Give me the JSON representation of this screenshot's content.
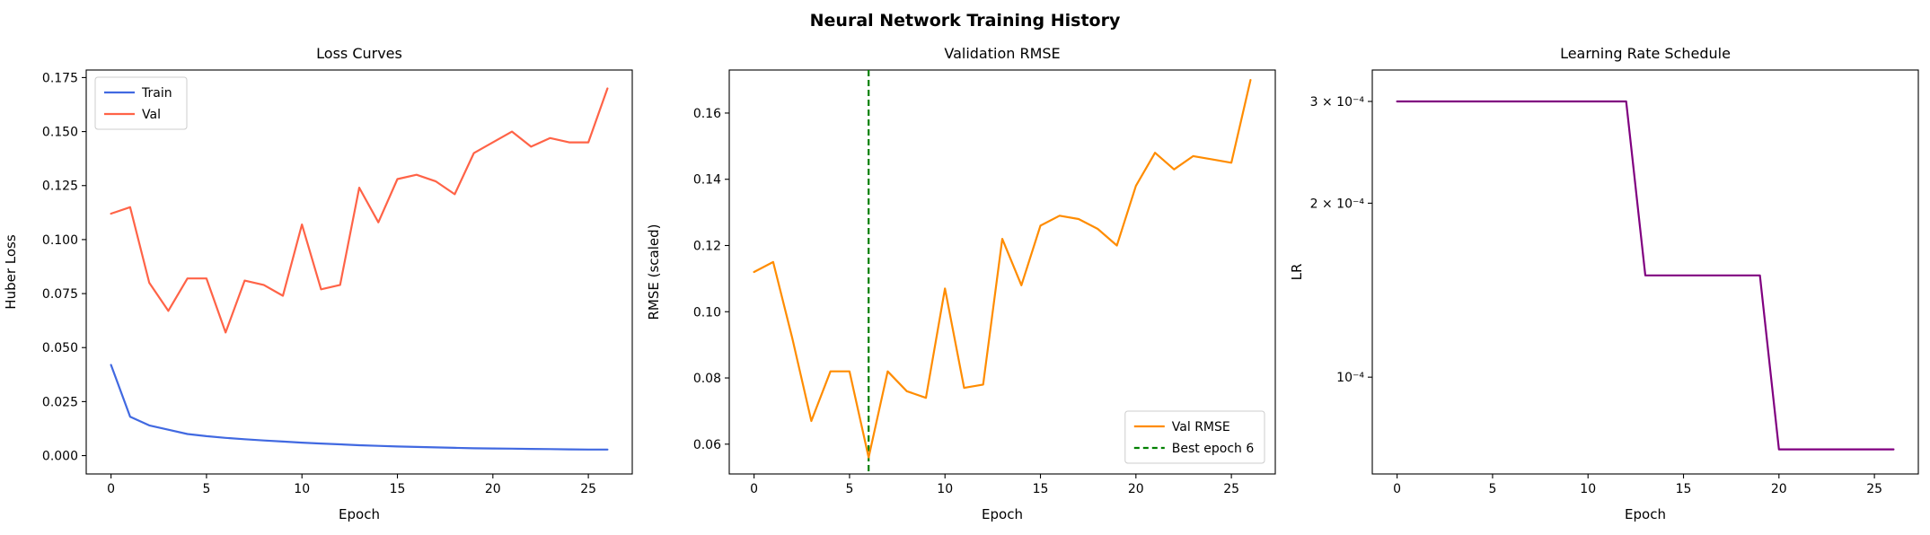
{
  "figure": {
    "title": "Neural Network Training History",
    "background": "#ffffff"
  },
  "chart_data": [
    {
      "type": "line",
      "title": "Loss Curves",
      "xlabel": "Epoch",
      "ylabel": "Huber Loss",
      "xlim": [
        -1.3,
        27.3
      ],
      "ylim": [
        -0.0085,
        0.1785
      ],
      "xticks": [
        0,
        5,
        10,
        15,
        20,
        25
      ],
      "yticks": [
        {
          "v": 0.0,
          "label": "0.000"
        },
        {
          "v": 0.025,
          "label": "0.025"
        },
        {
          "v": 0.05,
          "label": "0.050"
        },
        {
          "v": 0.075,
          "label": "0.075"
        },
        {
          "v": 0.1,
          "label": "0.100"
        },
        {
          "v": 0.125,
          "label": "0.125"
        },
        {
          "v": 0.15,
          "label": "0.150"
        },
        {
          "v": 0.175,
          "label": "0.175"
        }
      ],
      "x": [
        0,
        1,
        2,
        3,
        4,
        5,
        6,
        7,
        8,
        9,
        10,
        11,
        12,
        13,
        14,
        15,
        16,
        17,
        18,
        19,
        20,
        21,
        22,
        23,
        24,
        25,
        26
      ],
      "series": [
        {
          "name": "Train",
          "color": "#4169e1",
          "values": [
            0.042,
            0.018,
            0.014,
            0.012,
            0.01,
            0.009,
            0.0082,
            0.0076,
            0.007,
            0.0065,
            0.006,
            0.0056,
            0.0052,
            0.0048,
            0.0045,
            0.0042,
            0.004,
            0.0038,
            0.0036,
            0.0034,
            0.0033,
            0.0032,
            0.0031,
            0.003,
            0.0029,
            0.0028,
            0.0028
          ]
        },
        {
          "name": "Val",
          "color": "#ff6347",
          "values": [
            0.112,
            0.115,
            0.08,
            0.067,
            0.082,
            0.082,
            0.057,
            0.081,
            0.079,
            0.074,
            0.107,
            0.077,
            0.079,
            0.124,
            0.108,
            0.128,
            0.13,
            0.127,
            0.121,
            0.14,
            0.145,
            0.15,
            0.143,
            0.147,
            0.145,
            0.145,
            0.17
          ]
        }
      ],
      "legend": {
        "position": "upper-left",
        "entries": [
          {
            "label": "Train",
            "color": "#4169e1",
            "dash": false
          },
          {
            "label": "Val",
            "color": "#ff6347",
            "dash": false
          }
        ]
      }
    },
    {
      "type": "line",
      "title": "Validation RMSE",
      "xlabel": "Epoch",
      "ylabel": "RMSE (scaled)",
      "xlim": [
        -1.3,
        27.3
      ],
      "ylim": [
        0.051,
        0.173
      ],
      "xticks": [
        0,
        5,
        10,
        15,
        20,
        25
      ],
      "yticks": [
        {
          "v": 0.06,
          "label": "0.06"
        },
        {
          "v": 0.08,
          "label": "0.08"
        },
        {
          "v": 0.1,
          "label": "0.10"
        },
        {
          "v": 0.12,
          "label": "0.12"
        },
        {
          "v": 0.14,
          "label": "0.14"
        },
        {
          "v": 0.16,
          "label": "0.16"
        }
      ],
      "x": [
        0,
        1,
        2,
        3,
        4,
        5,
        6,
        7,
        8,
        9,
        10,
        11,
        12,
        13,
        14,
        15,
        16,
        17,
        18,
        19,
        20,
        21,
        22,
        23,
        24,
        25,
        26
      ],
      "vlines": [
        {
          "x": 6,
          "color": "#008000",
          "label": "Best epoch 6"
        }
      ],
      "series": [
        {
          "name": "Val RMSE",
          "color": "#ff8c00",
          "values": [
            0.112,
            0.115,
            0.092,
            0.067,
            0.082,
            0.082,
            0.056,
            0.082,
            0.076,
            0.074,
            0.107,
            0.077,
            0.078,
            0.122,
            0.108,
            0.126,
            0.129,
            0.128,
            0.125,
            0.12,
            0.138,
            0.148,
            0.143,
            0.147,
            0.146,
            0.145,
            0.17
          ]
        }
      ],
      "legend": {
        "position": "lower-right",
        "entries": [
          {
            "label": "Val RMSE",
            "color": "#ff8c00",
            "dash": false
          },
          {
            "label": "Best epoch 6",
            "color": "#008000",
            "dash": true
          }
        ]
      }
    },
    {
      "type": "line",
      "title": "Learning Rate Schedule",
      "xlabel": "Epoch",
      "ylabel": "LR",
      "yscale": "log",
      "xlim": [
        -1.3,
        27.3
      ],
      "ylim": [
        6.8e-05,
        0.00034
      ],
      "xticks": [
        0,
        5,
        10,
        15,
        20,
        25
      ],
      "yticks": [
        {
          "v": 0.0003,
          "label": "3 × 10⁻⁴"
        },
        {
          "v": 0.0002,
          "label": "2 × 10⁻⁴"
        },
        {
          "v": 0.0001,
          "label": "10⁻⁴"
        }
      ],
      "x": [
        0,
        1,
        2,
        3,
        4,
        5,
        6,
        7,
        8,
        9,
        10,
        11,
        12,
        13,
        14,
        15,
        16,
        17,
        18,
        19,
        20,
        21,
        22,
        23,
        24,
        25,
        26
      ],
      "series": [
        {
          "name": "LR",
          "color": "#800080",
          "values": [
            0.0003,
            0.0003,
            0.0003,
            0.0003,
            0.0003,
            0.0003,
            0.0003,
            0.0003,
            0.0003,
            0.0003,
            0.0003,
            0.0003,
            0.0003,
            0.00015,
            0.00015,
            0.00015,
            0.00015,
            0.00015,
            0.00015,
            0.00015,
            7.5e-05,
            7.5e-05,
            7.5e-05,
            7.5e-05,
            7.5e-05,
            7.5e-05,
            7.5e-05
          ]
        }
      ]
    }
  ]
}
